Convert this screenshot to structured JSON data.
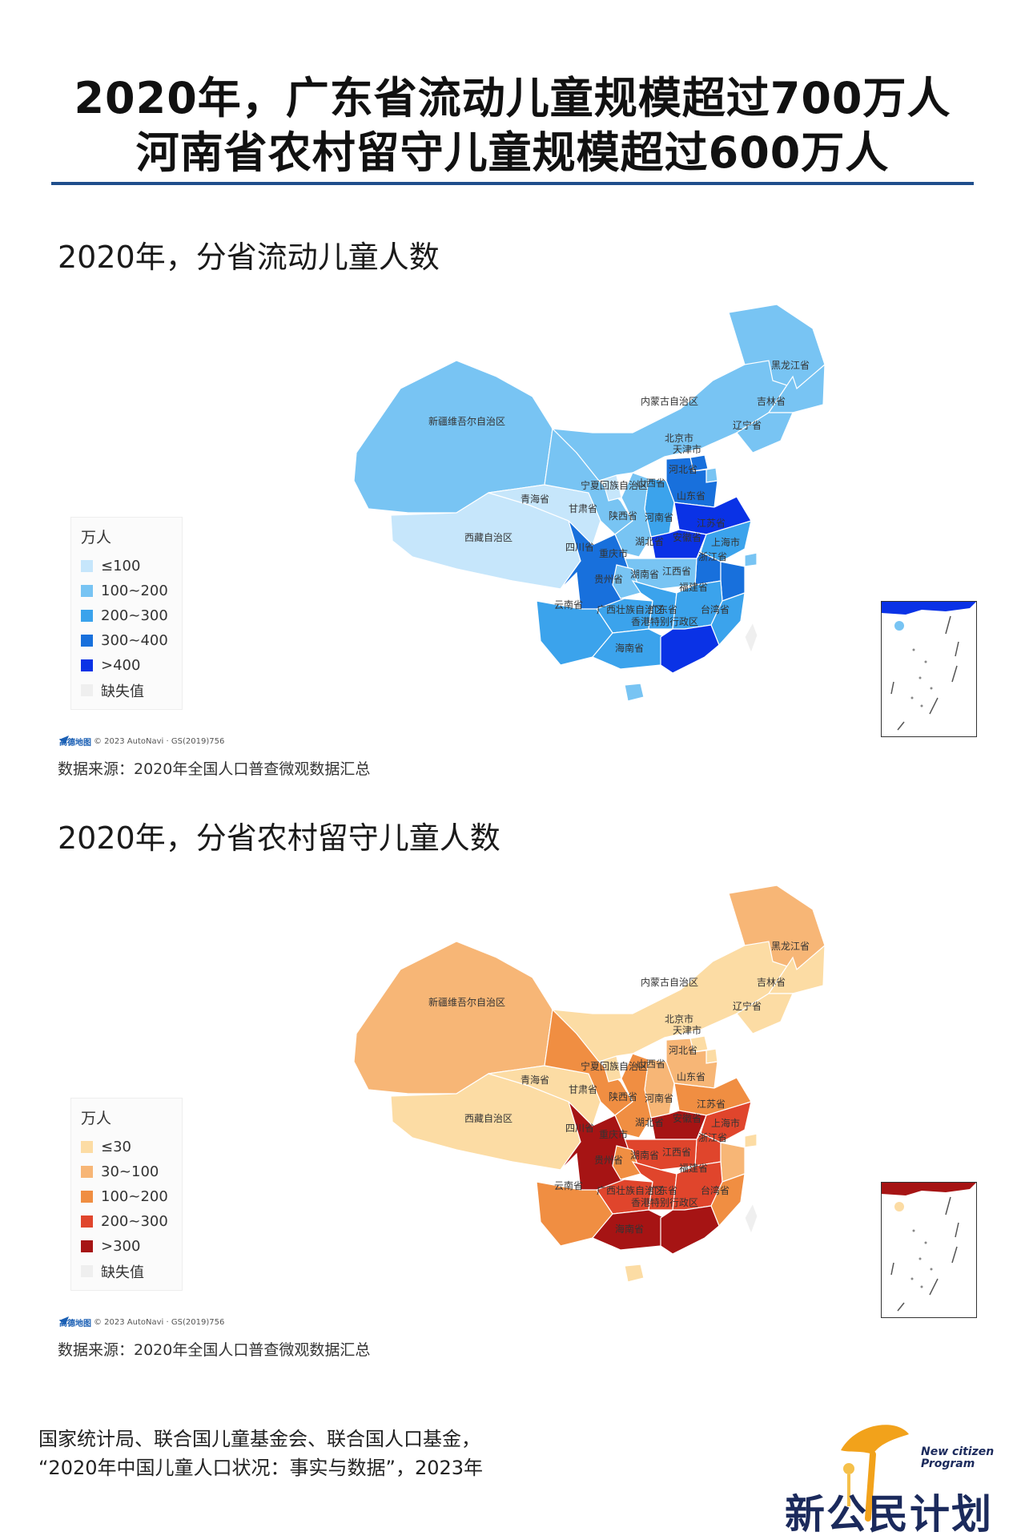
{
  "headline": {
    "line1": "2020年，广东省流动儿童规模超过700万人",
    "line2": "河南省农村留守儿童规模超过600万人"
  },
  "maps": [
    {
      "title": "2020年，分省流动儿童人数",
      "legend_title": "万人",
      "legend": [
        {
          "label": "≤100",
          "color": "#c6e6fb"
        },
        {
          "label": "100~200",
          "color": "#78c4f3"
        },
        {
          "label": "200~300",
          "color": "#3ba3ec"
        },
        {
          "label": "300~400",
          "color": "#1870dc"
        },
        {
          "label": ">400",
          "color": "#0a32e6"
        },
        {
          "label": "缺失值",
          "color": "#efefef"
        }
      ],
      "credit": "© 2023 AutoNavi · GS(2019)756",
      "credit_brand": "高德地图",
      "source": "数据来源：2020年全国人口普查微观数据汇总"
    },
    {
      "title": "2020年，分省农村留守儿童人数",
      "legend_title": "万人",
      "legend": [
        {
          "label": "≤30",
          "color": "#fcdca4"
        },
        {
          "label": "30~100",
          "color": "#f7b676"
        },
        {
          "label": "100~200",
          "color": "#f08e42"
        },
        {
          "label": "200~300",
          "color": "#e0452c"
        },
        {
          "label": ">300",
          "color": "#a61414"
        },
        {
          "label": "缺失值",
          "color": "#efefef"
        }
      ],
      "credit": "© 2023 AutoNavi · GS(2019)756",
      "credit_brand": "高德地图",
      "source": "数据来源：2020年全国人口普查微观数据汇总"
    }
  ],
  "provinces": {
    "xinjiang": "新疆维吾尔自治区",
    "xizang": "西藏自治区",
    "qinghai": "青海省",
    "gansu": "甘肃省",
    "ningxia": "宁夏回族自治区",
    "neimenggu": "内蒙古自治区",
    "heilongjiang": "黑龙江省",
    "jilin": "吉林省",
    "liaoning": "辽宁省",
    "beijing": "北京市",
    "tianjin": "天津市",
    "hebei": "河北省",
    "shanxi": "山西省",
    "shandong": "山东省",
    "shaanxi": "陕西省",
    "henan": "河南省",
    "jiangsu": "江苏省",
    "anhui": "安徽省",
    "shanghai": "上海市",
    "hubei": "湖北省",
    "sichuan": "四川省",
    "chongqing": "重庆市",
    "zhejiang": "浙江省",
    "guizhou": "贵州省",
    "hunan": "湖南省",
    "jiangxi": "江西省",
    "fujian": "福建省",
    "yunnan": "云南省",
    "guangxi": "广西壮族自治区",
    "guangdong": "广东省",
    "taiwan": "台湾省",
    "hainan": "海南省",
    "xianggang": "香港特别行政区"
  },
  "region_colors": {
    "map1": {
      "xinjiang": "#78c4f3",
      "xizang": "#c6e6fb",
      "qinghai": "#c6e6fb",
      "gansu": "#78c4f3",
      "ningxia": "#c6e6fb",
      "neimenggu": "#78c4f3",
      "heilongjiang": "#78c4f3",
      "jilin": "#78c4f3",
      "liaoning": "#78c4f3",
      "beijing": "#1870dc",
      "tianjin": "#78c4f3",
      "hebei": "#1870dc",
      "shanxi": "#3ba3ec",
      "shandong": "#0a32e6",
      "shaanxi": "#78c4f3",
      "henan": "#0a32e6",
      "jiangsu": "#3ba3ec",
      "anhui": "#1870dc",
      "shanghai": "#78c4f3",
      "hubei": "#78c4f3",
      "sichuan": "#1870dc",
      "chongqing": "#78c4f3",
      "zhejiang": "#1870dc",
      "guizhou": "#3ba3ec",
      "hunan": "#3ba3ec",
      "jiangxi": "#3ba3ec",
      "fujian": "#3ba3ec",
      "yunnan": "#3ba3ec",
      "guangxi": "#3ba3ec",
      "guangdong": "#0a32e6",
      "taiwan": "#efefef",
      "hainan": "#78c4f3"
    },
    "map2": {
      "xinjiang": "#f7b676",
      "xizang": "#fcdca4",
      "qinghai": "#fcdca4",
      "gansu": "#f08e42",
      "ningxia": "#fcdca4",
      "neimenggu": "#fcdca4",
      "heilongjiang": "#f7b676",
      "jilin": "#fcdca4",
      "liaoning": "#fcdca4",
      "beijing": "#fcdca4",
      "tianjin": "#fcdca4",
      "hebei": "#f7b676",
      "shanxi": "#f7b676",
      "shandong": "#f08e42",
      "shaanxi": "#f08e42",
      "henan": "#a61414",
      "jiangsu": "#e0452c",
      "anhui": "#e0452c",
      "shanghai": "#fcdca4",
      "hubei": "#e0452c",
      "sichuan": "#a61414",
      "chongqing": "#f08e42",
      "zhejiang": "#f7b676",
      "guizhou": "#e0452c",
      "hunan": "#e0452c",
      "jiangxi": "#e0452c",
      "fujian": "#f08e42",
      "yunnan": "#f08e42",
      "guangxi": "#a61414",
      "guangdong": "#a61414",
      "taiwan": "#efefef",
      "hainan": "#fcdca4"
    }
  },
  "citation": {
    "line1": "国家统计局、联合国儿童基金会、联合国人口基金，",
    "line2": "“2020年中国儿童人口状况：事实与数据”，2023年"
  },
  "logo": {
    "en_line1": "New citizen",
    "en_line2": "Program",
    "cn": "新公民计划"
  }
}
